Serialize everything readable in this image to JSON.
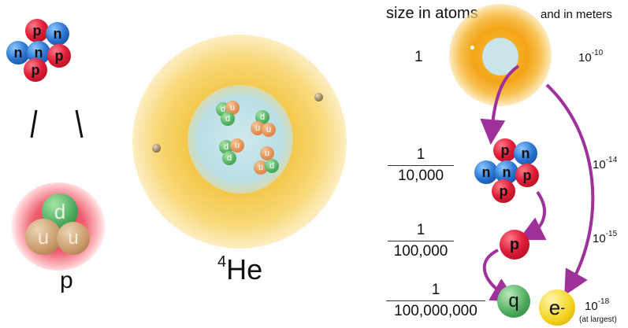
{
  "left_panel": {
    "nucleus_labels": [
      "p",
      "n",
      "n",
      "n",
      "p",
      "p"
    ],
    "proton_quark_labels": [
      "d",
      "u",
      "u"
    ],
    "proton_label": "p"
  },
  "center_panel": {
    "quark_labels": [
      "d",
      "u",
      "d",
      "d",
      "u",
      "u",
      "d",
      "u",
      "d",
      "u",
      "u",
      "d"
    ],
    "helium_mass_number": "4",
    "helium_symbol": "He"
  },
  "right_panel": {
    "header_atoms": "size in atoms",
    "header_meters": "and in meters",
    "rows": [
      {
        "ratio_numerator": "1",
        "ratio_denominator": "",
        "meter_base": "10",
        "meter_exponent": "-10",
        "particle": "atom"
      },
      {
        "ratio_numerator": "1",
        "ratio_denominator": "10,000",
        "meter_base": "10",
        "meter_exponent": "-14",
        "particle": "nucleus"
      },
      {
        "ratio_numerator": "1",
        "ratio_denominator": "100,000",
        "meter_base": "10",
        "meter_exponent": "-15",
        "particle": "p"
      },
      {
        "ratio_numerator": "1",
        "ratio_denominator": "100,000,000",
        "meter_base": "10",
        "meter_exponent": "-18",
        "meter_note": "(at largest)",
        "particle": "q"
      }
    ],
    "nucleus_labels": [
      "p",
      "n",
      "n",
      "n",
      "p",
      "p"
    ],
    "proton_label": "p",
    "quark_label": "q",
    "electron_base": "e",
    "electron_charge": "-"
  },
  "colors": {
    "proton": "#e0203a",
    "neutron": "#2a74d0",
    "up_quark": "#c89a6a",
    "down_quark": "#5ab26a",
    "electron": "#f2d21a",
    "arrow": "#a0309a",
    "electron_cloud": "#f5c23a"
  }
}
